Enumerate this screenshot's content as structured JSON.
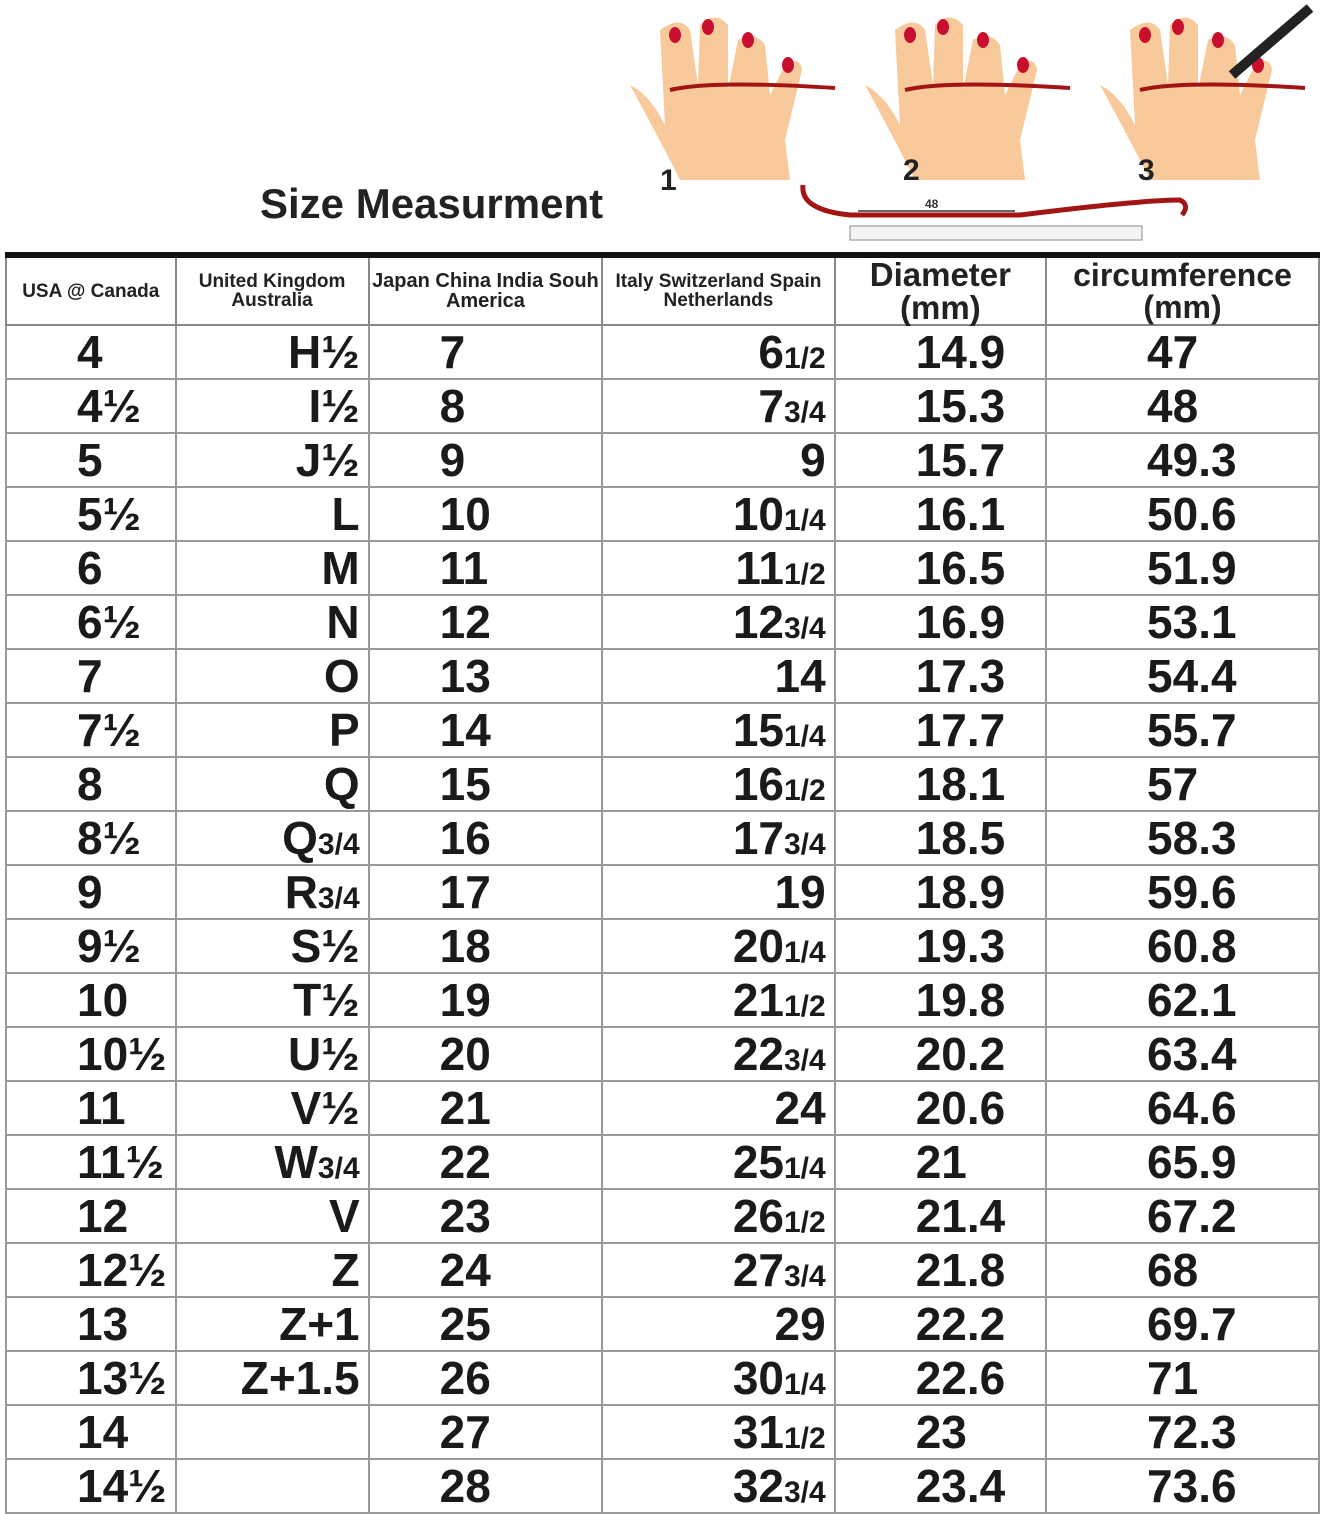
{
  "title": "Size Measurment",
  "illustration": {
    "step_labels": [
      "1",
      "2",
      "3"
    ],
    "ruler_reading": "48",
    "colors": {
      "skin": "#f7c99b",
      "nail": "#c8102e",
      "string": "#a31515"
    }
  },
  "chart_data": {
    "type": "table",
    "columns": [
      "USA @ Canada",
      "United Kingdom Australia",
      "Japan  China  India Souh America",
      "Italy    Switzerland Spain  Netherlands",
      "Diameter (mm)",
      "circumference (mm)"
    ],
    "rows": [
      [
        [
          "4",
          ""
        ],
        [
          "H½",
          ""
        ],
        [
          "7",
          ""
        ],
        [
          "6",
          "1/2"
        ],
        [
          "14.9",
          ""
        ],
        [
          "47",
          ""
        ]
      ],
      [
        [
          "4½",
          ""
        ],
        [
          "I½",
          ""
        ],
        [
          "8",
          ""
        ],
        [
          "7",
          "3/4"
        ],
        [
          "15.3",
          ""
        ],
        [
          "48",
          ""
        ]
      ],
      [
        [
          "5",
          ""
        ],
        [
          "J½",
          ""
        ],
        [
          "9",
          ""
        ],
        [
          "9",
          ""
        ],
        [
          "15.7",
          ""
        ],
        [
          "49.3",
          ""
        ]
      ],
      [
        [
          "5½",
          ""
        ],
        [
          "L",
          ""
        ],
        [
          "10",
          ""
        ],
        [
          "10",
          "1/4"
        ],
        [
          "16.1",
          ""
        ],
        [
          "50.6",
          ""
        ]
      ],
      [
        [
          "6",
          ""
        ],
        [
          "M",
          ""
        ],
        [
          "11",
          ""
        ],
        [
          "11",
          "1/2"
        ],
        [
          "16.5",
          ""
        ],
        [
          "51.9",
          ""
        ]
      ],
      [
        [
          "6½",
          ""
        ],
        [
          "N",
          ""
        ],
        [
          "12",
          ""
        ],
        [
          "12",
          "3/4"
        ],
        [
          "16.9",
          ""
        ],
        [
          "53.1",
          ""
        ]
      ],
      [
        [
          "7",
          ""
        ],
        [
          "O",
          ""
        ],
        [
          "13",
          ""
        ],
        [
          "14",
          ""
        ],
        [
          "17.3",
          ""
        ],
        [
          "54.4",
          ""
        ]
      ],
      [
        [
          "7½",
          ""
        ],
        [
          "P",
          ""
        ],
        [
          "14",
          ""
        ],
        [
          "15",
          "1/4"
        ],
        [
          "17.7",
          ""
        ],
        [
          "55.7",
          ""
        ]
      ],
      [
        [
          "8",
          ""
        ],
        [
          "Q",
          ""
        ],
        [
          "15",
          ""
        ],
        [
          "16",
          "1/2"
        ],
        [
          "18.1",
          ""
        ],
        [
          "57",
          ""
        ]
      ],
      [
        [
          "8½",
          ""
        ],
        [
          "Q",
          "3/4"
        ],
        [
          "16",
          ""
        ],
        [
          "17",
          "3/4"
        ],
        [
          "18.5",
          ""
        ],
        [
          "58.3",
          ""
        ]
      ],
      [
        [
          "9",
          ""
        ],
        [
          "R",
          "3/4"
        ],
        [
          "17",
          ""
        ],
        [
          "19",
          ""
        ],
        [
          "18.9",
          ""
        ],
        [
          "59.6",
          ""
        ]
      ],
      [
        [
          "9½",
          ""
        ],
        [
          "S½",
          ""
        ],
        [
          "18",
          ""
        ],
        [
          "20",
          "1/4"
        ],
        [
          "19.3",
          ""
        ],
        [
          "60.8",
          ""
        ]
      ],
      [
        [
          "10",
          ""
        ],
        [
          "T½",
          ""
        ],
        [
          "19",
          ""
        ],
        [
          "21",
          "1/2"
        ],
        [
          "19.8",
          ""
        ],
        [
          "62.1",
          ""
        ]
      ],
      [
        [
          "10½",
          ""
        ],
        [
          "U½",
          ""
        ],
        [
          "20",
          ""
        ],
        [
          "22",
          "3/4"
        ],
        [
          "20.2",
          ""
        ],
        [
          "63.4",
          ""
        ]
      ],
      [
        [
          "11",
          ""
        ],
        [
          "V½",
          ""
        ],
        [
          "21",
          ""
        ],
        [
          "24",
          ""
        ],
        [
          "20.6",
          ""
        ],
        [
          "64.6",
          ""
        ]
      ],
      [
        [
          "11½",
          ""
        ],
        [
          "W",
          "3/4"
        ],
        [
          "22",
          ""
        ],
        [
          "25",
          "1/4"
        ],
        [
          "21",
          ""
        ],
        [
          "65.9",
          ""
        ]
      ],
      [
        [
          "12",
          ""
        ],
        [
          "V",
          ""
        ],
        [
          "23",
          ""
        ],
        [
          "26",
          "1/2"
        ],
        [
          "21.4",
          ""
        ],
        [
          "67.2",
          ""
        ]
      ],
      [
        [
          "12½",
          ""
        ],
        [
          "Z",
          ""
        ],
        [
          "24",
          ""
        ],
        [
          "27",
          "3/4"
        ],
        [
          "21.8",
          ""
        ],
        [
          "68",
          ""
        ]
      ],
      [
        [
          "13",
          ""
        ],
        [
          "Z+1",
          ""
        ],
        [
          "25",
          ""
        ],
        [
          "29",
          ""
        ],
        [
          "22.2",
          ""
        ],
        [
          "69.7",
          ""
        ]
      ],
      [
        [
          "13½",
          ""
        ],
        [
          "Z+1.5",
          ""
        ],
        [
          "26",
          ""
        ],
        [
          "30",
          "1/4"
        ],
        [
          "22.6",
          ""
        ],
        [
          "71",
          ""
        ]
      ],
      [
        [
          "14",
          ""
        ],
        [
          "",
          ""
        ],
        [
          "27",
          ""
        ],
        [
          "31",
          "1/2"
        ],
        [
          "23",
          ""
        ],
        [
          "72.3",
          ""
        ]
      ],
      [
        [
          "14½",
          ""
        ],
        [
          "",
          ""
        ],
        [
          "28",
          ""
        ],
        [
          "32",
          "3/4"
        ],
        [
          "23.4",
          ""
        ],
        [
          "73.6",
          ""
        ]
      ]
    ]
  }
}
